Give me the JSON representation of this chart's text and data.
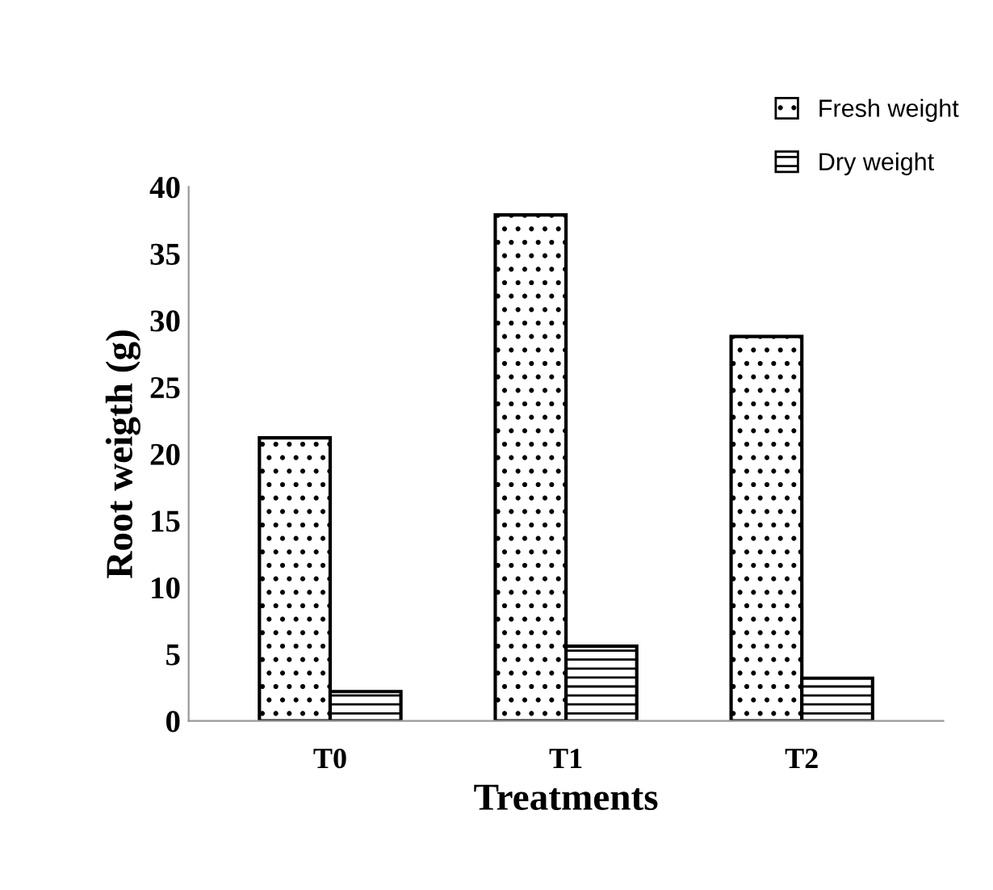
{
  "chart_data": {
    "type": "bar",
    "xlabel": "Treatments",
    "ylabel": "Root weigth (g)",
    "categories": [
      "T0",
      "T1",
      "T2"
    ],
    "series": [
      {
        "name": "Fresh weight",
        "color": "#000000",
        "values": [
          21.2,
          37.9,
          28.8
        ]
      },
      {
        "name": "Dry weight",
        "color": "#000000",
        "values": [
          2.2,
          5.6,
          3.2
        ]
      }
    ],
    "ylim": [
      0,
      40
    ],
    "yticks": [
      0,
      5,
      10,
      15,
      20,
      25,
      30,
      35,
      40
    ],
    "grid": false,
    "legend": "top right"
  }
}
